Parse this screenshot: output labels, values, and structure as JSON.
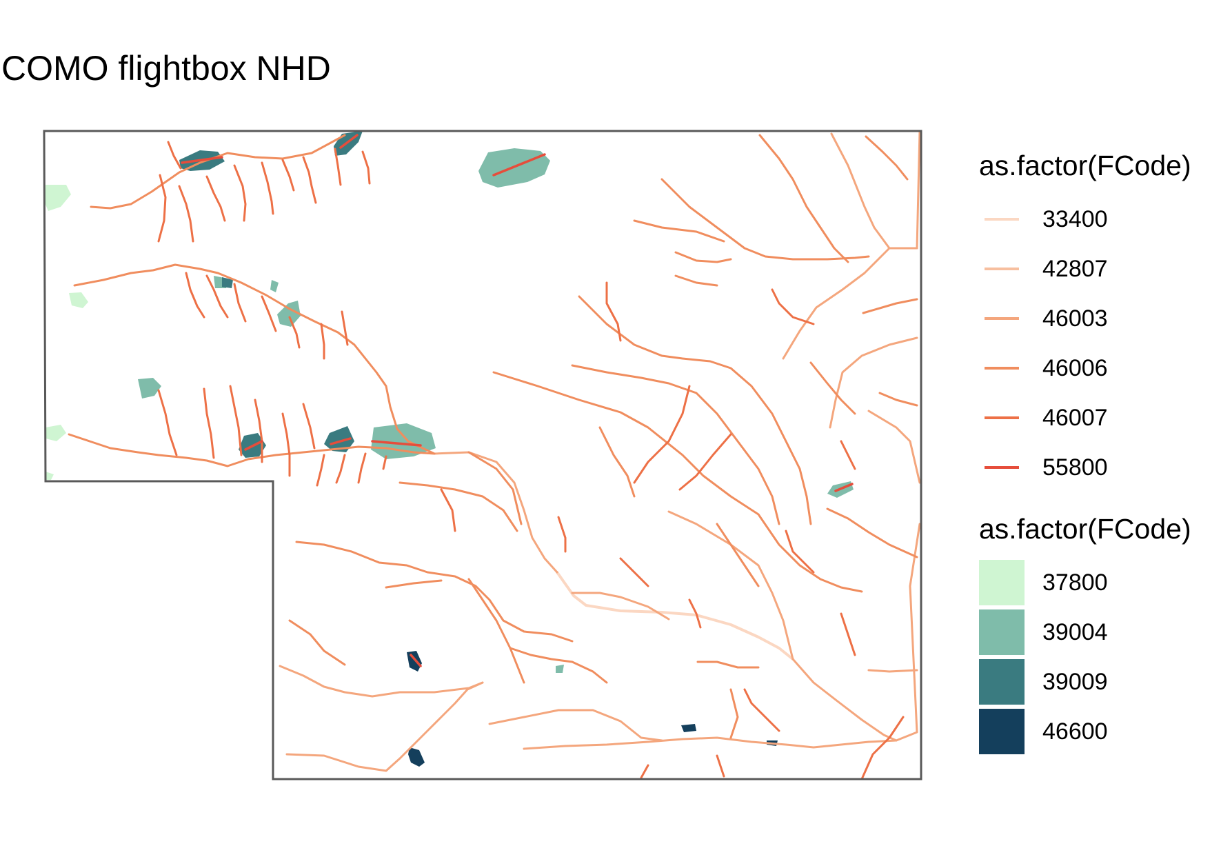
{
  "title": "COMO flightbox NHD",
  "legend_lines": {
    "title": "as.factor(FCode)",
    "items": [
      {
        "label": "33400",
        "color": "#fbd7c2"
      },
      {
        "label": "42807",
        "color": "#f7bf9f"
      },
      {
        "label": "46003",
        "color": "#f4a67d"
      },
      {
        "label": "46006",
        "color": "#f08d5e"
      },
      {
        "label": "46007",
        "color": "#ed7046"
      },
      {
        "label": "55800",
        "color": "#e64d3b"
      }
    ]
  },
  "legend_fills": {
    "title": "as.factor(FCode)",
    "items": [
      {
        "label": "37800",
        "color": "#cff5d2"
      },
      {
        "label": "39004",
        "color": "#7fbcaa"
      },
      {
        "label": "39009",
        "color": "#3a7b80"
      },
      {
        "label": "46600",
        "color": "#143f5c"
      }
    ]
  },
  "map_style": {
    "background": "#ffffff",
    "boundary_color": "#595959",
    "flowline_colors": {
      "33400": "#fbd7c2",
      "42807": "#f7bf9f",
      "46003": "#f4a67d",
      "46006": "#f08d5e",
      "46007": "#ed7046",
      "55800": "#e64d3b"
    },
    "waterbody_colors": {
      "37800": "#cff5d2",
      "39004": "#7fbcaa",
      "39009": "#3a7b80",
      "46600": "#143f5c"
    }
  }
}
